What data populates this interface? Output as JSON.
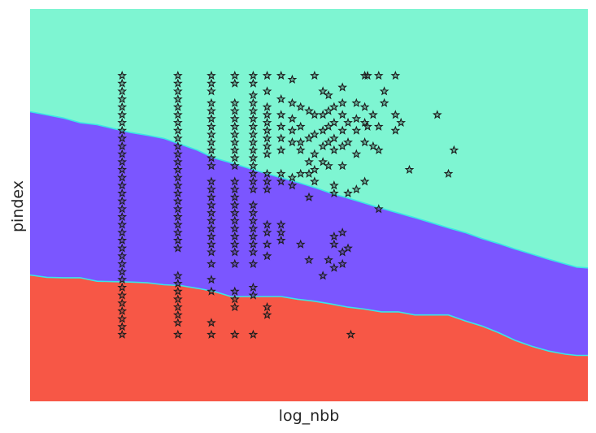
{
  "chart_data": {
    "type": "scatter",
    "title": "",
    "xlabel": "log_nbb",
    "ylabel": "pindex",
    "xlim": [
      0,
      10
    ],
    "ylim": [
      0,
      10
    ],
    "xticks_visible": false,
    "yticks_visible": false,
    "grid": false,
    "regions": [
      {
        "name": "upper",
        "color": "#7ef5d2",
        "boundary": "top"
      },
      {
        "name": "middle",
        "color": "#7b56ff",
        "boundary": "between"
      },
      {
        "name": "lower",
        "color": "#f75746",
        "boundary": "bottom"
      }
    ],
    "boundary_color": "#3ae6e6",
    "upper_boundary": {
      "x": [
        0,
        0.3,
        0.6,
        0.9,
        1.2,
        1.5,
        1.8,
        2.1,
        2.4,
        2.7,
        3.0,
        3.3,
        3.6,
        3.9,
        4.2,
        4.5,
        4.8,
        5.1,
        5.4,
        5.7,
        6.0,
        6.3,
        6.6,
        6.9,
        7.2,
        7.5,
        7.8,
        8.1,
        8.4,
        8.7,
        9.0,
        9.3,
        9.6,
        9.8,
        10.0
      ],
      "y": [
        7.38,
        7.3,
        7.22,
        7.1,
        7.05,
        6.95,
        6.85,
        6.78,
        6.7,
        6.55,
        6.4,
        6.2,
        6.08,
        5.95,
        5.82,
        5.7,
        5.58,
        5.45,
        5.3,
        5.18,
        5.05,
        4.92,
        4.8,
        4.68,
        4.55,
        4.42,
        4.3,
        4.15,
        4.02,
        3.88,
        3.75,
        3.62,
        3.5,
        3.42,
        3.4
      ]
    },
    "lower_boundary": {
      "x": [
        0,
        0.3,
        0.6,
        0.9,
        1.2,
        1.5,
        1.8,
        2.1,
        2.4,
        2.7,
        3.0,
        3.3,
        3.6,
        3.9,
        4.2,
        4.5,
        4.8,
        5.1,
        5.4,
        5.7,
        6.0,
        6.3,
        6.6,
        6.9,
        7.2,
        7.5,
        7.8,
        8.1,
        8.4,
        8.7,
        9.0,
        9.3,
        9.6,
        9.8,
        10.0
      ],
      "y": [
        3.22,
        3.16,
        3.15,
        3.15,
        3.06,
        3.05,
        3.04,
        3.02,
        2.97,
        2.95,
        2.88,
        2.8,
        2.67,
        2.67,
        2.67,
        2.67,
        2.6,
        2.55,
        2.48,
        2.4,
        2.35,
        2.28,
        2.28,
        2.2,
        2.2,
        2.2,
        2.05,
        1.92,
        1.75,
        1.55,
        1.4,
        1.28,
        1.2,
        1.17,
        1.17
      ]
    },
    "series": [
      {
        "marker": "star",
        "points": [
          [
            1.65,
            8.3
          ],
          [
            1.65,
            8.1
          ],
          [
            1.65,
            7.9
          ],
          [
            1.65,
            7.7
          ],
          [
            1.65,
            7.5
          ],
          [
            1.65,
            7.3
          ],
          [
            1.65,
            7.1
          ],
          [
            1.65,
            6.9
          ],
          [
            1.65,
            6.7
          ],
          [
            1.65,
            6.5
          ],
          [
            1.65,
            6.3
          ],
          [
            1.65,
            6.1
          ],
          [
            1.65,
            5.9
          ],
          [
            1.65,
            5.7
          ],
          [
            1.65,
            5.5
          ],
          [
            1.65,
            5.3
          ],
          [
            1.65,
            5.1
          ],
          [
            1.65,
            4.9
          ],
          [
            1.65,
            4.7
          ],
          [
            1.65,
            4.5
          ],
          [
            1.65,
            4.3
          ],
          [
            1.65,
            4.1
          ],
          [
            1.65,
            3.9
          ],
          [
            1.65,
            3.7
          ],
          [
            1.65,
            3.5
          ],
          [
            1.65,
            3.3
          ],
          [
            1.65,
            3.1
          ],
          [
            1.65,
            2.9
          ],
          [
            1.65,
            2.7
          ],
          [
            1.65,
            2.5
          ],
          [
            1.65,
            2.3
          ],
          [
            1.65,
            2.1
          ],
          [
            1.65,
            1.9
          ],
          [
            1.65,
            1.7
          ],
          [
            2.65,
            8.3
          ],
          [
            2.65,
            8.1
          ],
          [
            2.65,
            7.9
          ],
          [
            2.65,
            7.7
          ],
          [
            2.65,
            7.5
          ],
          [
            2.65,
            7.3
          ],
          [
            2.65,
            7.1
          ],
          [
            2.65,
            6.9
          ],
          [
            2.65,
            6.7
          ],
          [
            2.65,
            6.5
          ],
          [
            2.65,
            6.3
          ],
          [
            2.65,
            6.1
          ],
          [
            2.65,
            5.9
          ],
          [
            2.65,
            5.7
          ],
          [
            2.65,
            5.5
          ],
          [
            2.65,
            5.3
          ],
          [
            2.65,
            5.1
          ],
          [
            2.65,
            4.9
          ],
          [
            2.65,
            4.7
          ],
          [
            2.65,
            4.5
          ],
          [
            2.65,
            4.3
          ],
          [
            2.65,
            4.1
          ],
          [
            2.65,
            3.9
          ],
          [
            2.65,
            3.2
          ],
          [
            2.65,
            3.0
          ],
          [
            2.65,
            2.8
          ],
          [
            2.65,
            2.6
          ],
          [
            2.65,
            2.4
          ],
          [
            2.65,
            2.2
          ],
          [
            2.65,
            2.0
          ],
          [
            2.65,
            1.7
          ],
          [
            3.25,
            8.3
          ],
          [
            3.25,
            8.1
          ],
          [
            3.25,
            7.9
          ],
          [
            3.25,
            7.6
          ],
          [
            3.25,
            7.4
          ],
          [
            3.25,
            7.2
          ],
          [
            3.25,
            7.0
          ],
          [
            3.25,
            6.8
          ],
          [
            3.25,
            6.6
          ],
          [
            3.25,
            6.4
          ],
          [
            3.25,
            6.2
          ],
          [
            3.25,
            6.0
          ],
          [
            3.25,
            5.6
          ],
          [
            3.25,
            5.4
          ],
          [
            3.25,
            5.2
          ],
          [
            3.25,
            5.0
          ],
          [
            3.25,
            4.8
          ],
          [
            3.25,
            4.6
          ],
          [
            3.25,
            4.4
          ],
          [
            3.25,
            4.2
          ],
          [
            3.25,
            4.0
          ],
          [
            3.25,
            3.8
          ],
          [
            3.25,
            3.5
          ],
          [
            3.25,
            3.1
          ],
          [
            3.25,
            2.8
          ],
          [
            3.25,
            2.0
          ],
          [
            3.25,
            1.7
          ],
          [
            3.67,
            8.3
          ],
          [
            3.67,
            8.1
          ],
          [
            3.67,
            7.6
          ],
          [
            3.67,
            7.4
          ],
          [
            3.67,
            7.2
          ],
          [
            3.67,
            7.0
          ],
          [
            3.67,
            6.8
          ],
          [
            3.67,
            6.6
          ],
          [
            3.67,
            6.4
          ],
          [
            3.67,
            6.2
          ],
          [
            3.67,
            6.0
          ],
          [
            3.67,
            5.6
          ],
          [
            3.67,
            5.4
          ],
          [
            3.67,
            5.2
          ],
          [
            3.67,
            5.0
          ],
          [
            3.67,
            4.8
          ],
          [
            3.67,
            4.6
          ],
          [
            3.67,
            4.4
          ],
          [
            3.67,
            4.2
          ],
          [
            3.67,
            4.0
          ],
          [
            3.67,
            3.8
          ],
          [
            3.67,
            3.5
          ],
          [
            3.67,
            2.8
          ],
          [
            3.67,
            2.6
          ],
          [
            3.67,
            2.4
          ],
          [
            3.67,
            1.7
          ],
          [
            4.0,
            8.3
          ],
          [
            4.0,
            8.1
          ],
          [
            4.0,
            7.8
          ],
          [
            4.0,
            7.6
          ],
          [
            4.0,
            7.4
          ],
          [
            4.0,
            7.2
          ],
          [
            4.0,
            7.0
          ],
          [
            4.0,
            6.8
          ],
          [
            4.0,
            6.6
          ],
          [
            4.0,
            6.4
          ],
          [
            4.0,
            6.2
          ],
          [
            4.0,
            6.0
          ],
          [
            4.0,
            5.8
          ],
          [
            4.0,
            5.6
          ],
          [
            4.0,
            5.4
          ],
          [
            4.0,
            5.0
          ],
          [
            4.0,
            4.8
          ],
          [
            4.0,
            4.6
          ],
          [
            4.0,
            4.4
          ],
          [
            4.0,
            4.2
          ],
          [
            4.0,
            4.0
          ],
          [
            4.0,
            3.8
          ],
          [
            4.0,
            3.5
          ],
          [
            4.0,
            2.9
          ],
          [
            4.0,
            2.7
          ],
          [
            4.0,
            1.7
          ],
          [
            4.25,
            8.3
          ],
          [
            4.25,
            7.9
          ],
          [
            4.25,
            7.5
          ],
          [
            4.25,
            7.3
          ],
          [
            4.25,
            7.1
          ],
          [
            4.25,
            6.9
          ],
          [
            4.25,
            6.7
          ],
          [
            4.25,
            6.5
          ],
          [
            4.25,
            6.3
          ],
          [
            4.25,
            5.8
          ],
          [
            4.25,
            5.6
          ],
          [
            4.25,
            5.4
          ],
          [
            4.25,
            4.5
          ],
          [
            4.25,
            4.3
          ],
          [
            4.25,
            4.0
          ],
          [
            4.25,
            3.7
          ],
          [
            4.25,
            2.4
          ],
          [
            4.25,
            2.2
          ],
          [
            4.5,
            8.3
          ],
          [
            4.5,
            7.7
          ],
          [
            4.5,
            7.3
          ],
          [
            4.5,
            7.0
          ],
          [
            4.5,
            6.7
          ],
          [
            4.5,
            6.4
          ],
          [
            4.5,
            5.8
          ],
          [
            4.5,
            5.6
          ],
          [
            4.5,
            4.5
          ],
          [
            4.5,
            4.3
          ],
          [
            4.5,
            4.1
          ],
          [
            4.7,
            8.2
          ],
          [
            4.7,
            7.6
          ],
          [
            4.7,
            7.2
          ],
          [
            4.7,
            6.9
          ],
          [
            4.7,
            6.6
          ],
          [
            4.7,
            5.7
          ],
          [
            4.7,
            5.5
          ],
          [
            4.85,
            7.5
          ],
          [
            4.85,
            7.0
          ],
          [
            4.85,
            6.6
          ],
          [
            4.85,
            6.4
          ],
          [
            4.85,
            5.8
          ],
          [
            4.85,
            4.0
          ],
          [
            5.0,
            7.4
          ],
          [
            5.0,
            6.7
          ],
          [
            5.0,
            6.1
          ],
          [
            5.0,
            5.8
          ],
          [
            5.0,
            5.2
          ],
          [
            5.0,
            3.6
          ],
          [
            5.1,
            8.3
          ],
          [
            5.1,
            7.3
          ],
          [
            5.1,
            6.8
          ],
          [
            5.1,
            6.3
          ],
          [
            5.1,
            5.9
          ],
          [
            5.1,
            5.6
          ],
          [
            5.25,
            7.9
          ],
          [
            5.25,
            7.3
          ],
          [
            5.25,
            6.9
          ],
          [
            5.25,
            6.5
          ],
          [
            5.25,
            6.1
          ],
          [
            5.25,
            3.2
          ],
          [
            5.35,
            7.8
          ],
          [
            5.35,
            7.4
          ],
          [
            5.35,
            7.0
          ],
          [
            5.35,
            6.6
          ],
          [
            5.35,
            6.0
          ],
          [
            5.35,
            3.6
          ],
          [
            5.45,
            7.5
          ],
          [
            5.45,
            7.1
          ],
          [
            5.45,
            6.7
          ],
          [
            5.45,
            6.4
          ],
          [
            5.45,
            5.5
          ],
          [
            5.45,
            5.3
          ],
          [
            5.45,
            4.2
          ],
          [
            5.45,
            4.0
          ],
          [
            5.45,
            3.4
          ],
          [
            5.6,
            8.0
          ],
          [
            5.6,
            7.6
          ],
          [
            5.6,
            7.3
          ],
          [
            5.6,
            6.9
          ],
          [
            5.6,
            6.5
          ],
          [
            5.6,
            6.0
          ],
          [
            5.6,
            4.3
          ],
          [
            5.6,
            3.8
          ],
          [
            5.6,
            3.5
          ],
          [
            5.7,
            7.1
          ],
          [
            5.7,
            6.6
          ],
          [
            5.7,
            5.3
          ],
          [
            5.7,
            3.9
          ],
          [
            5.75,
            1.7
          ],
          [
            5.85,
            7.6
          ],
          [
            5.85,
            7.2
          ],
          [
            5.85,
            6.9
          ],
          [
            5.85,
            6.3
          ],
          [
            5.85,
            5.4
          ],
          [
            6.0,
            8.3
          ],
          [
            6.0,
            7.5
          ],
          [
            6.0,
            7.1
          ],
          [
            6.0,
            6.6
          ],
          [
            6.0,
            5.6
          ],
          [
            6.05,
            8.3
          ],
          [
            6.05,
            7.0
          ],
          [
            6.15,
            7.3
          ],
          [
            6.15,
            6.5
          ],
          [
            6.25,
            8.3
          ],
          [
            6.25,
            7.0
          ],
          [
            6.25,
            6.4
          ],
          [
            6.25,
            4.9
          ],
          [
            6.35,
            7.9
          ],
          [
            6.35,
            7.6
          ],
          [
            6.55,
            8.3
          ],
          [
            6.55,
            7.3
          ],
          [
            6.55,
            6.9
          ],
          [
            6.65,
            7.1
          ],
          [
            6.8,
            5.9
          ],
          [
            7.3,
            7.3
          ],
          [
            7.5,
            5.8
          ],
          [
            7.6,
            6.4
          ]
        ]
      }
    ]
  }
}
